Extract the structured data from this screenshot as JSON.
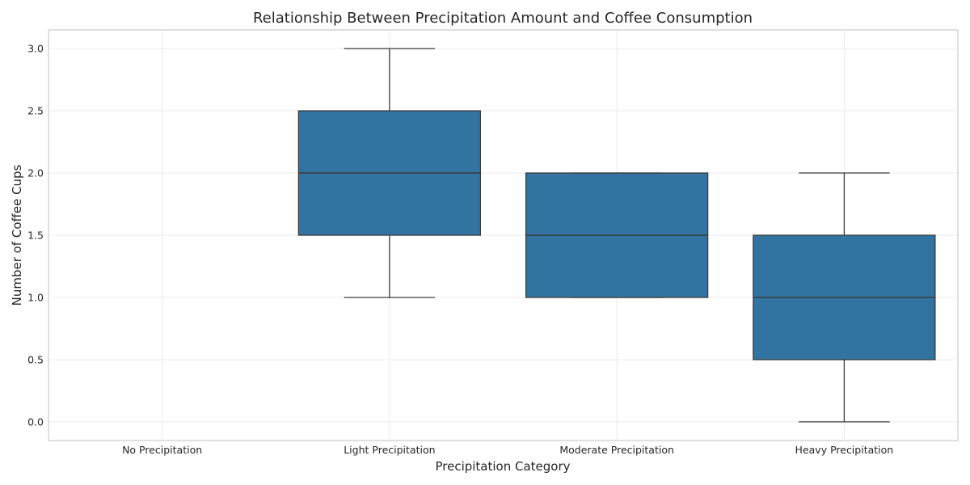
{
  "chart_data": {
    "type": "box",
    "title": "Relationship Between Precipitation Amount and Coffee Consumption",
    "xlabel": "Precipitation Category",
    "ylabel": "Number of Coffee Cups",
    "categories": [
      "No Precipitation",
      "Light Precipitation",
      "Moderate Precipitation",
      "Heavy Precipitation"
    ],
    "boxes": [
      null,
      {
        "whisker_low": 1.0,
        "q1": 1.5,
        "median": 2.0,
        "q3": 2.5,
        "whisker_high": 3.0
      },
      {
        "whisker_low": 1.0,
        "q1": 1.0,
        "median": 1.5,
        "q3": 2.0,
        "whisker_high": 2.0
      },
      {
        "whisker_low": 0.0,
        "q1": 0.5,
        "median": 1.0,
        "q3": 1.5,
        "whisker_high": 2.0
      }
    ],
    "y_ticks": [
      "0.0",
      "0.5",
      "1.0",
      "1.5",
      "2.0",
      "2.5",
      "3.0"
    ],
    "ylim": [
      -0.15,
      3.15
    ],
    "grid": true,
    "box_color": "#3274a1",
    "line_color": "#3a3a3a"
  }
}
